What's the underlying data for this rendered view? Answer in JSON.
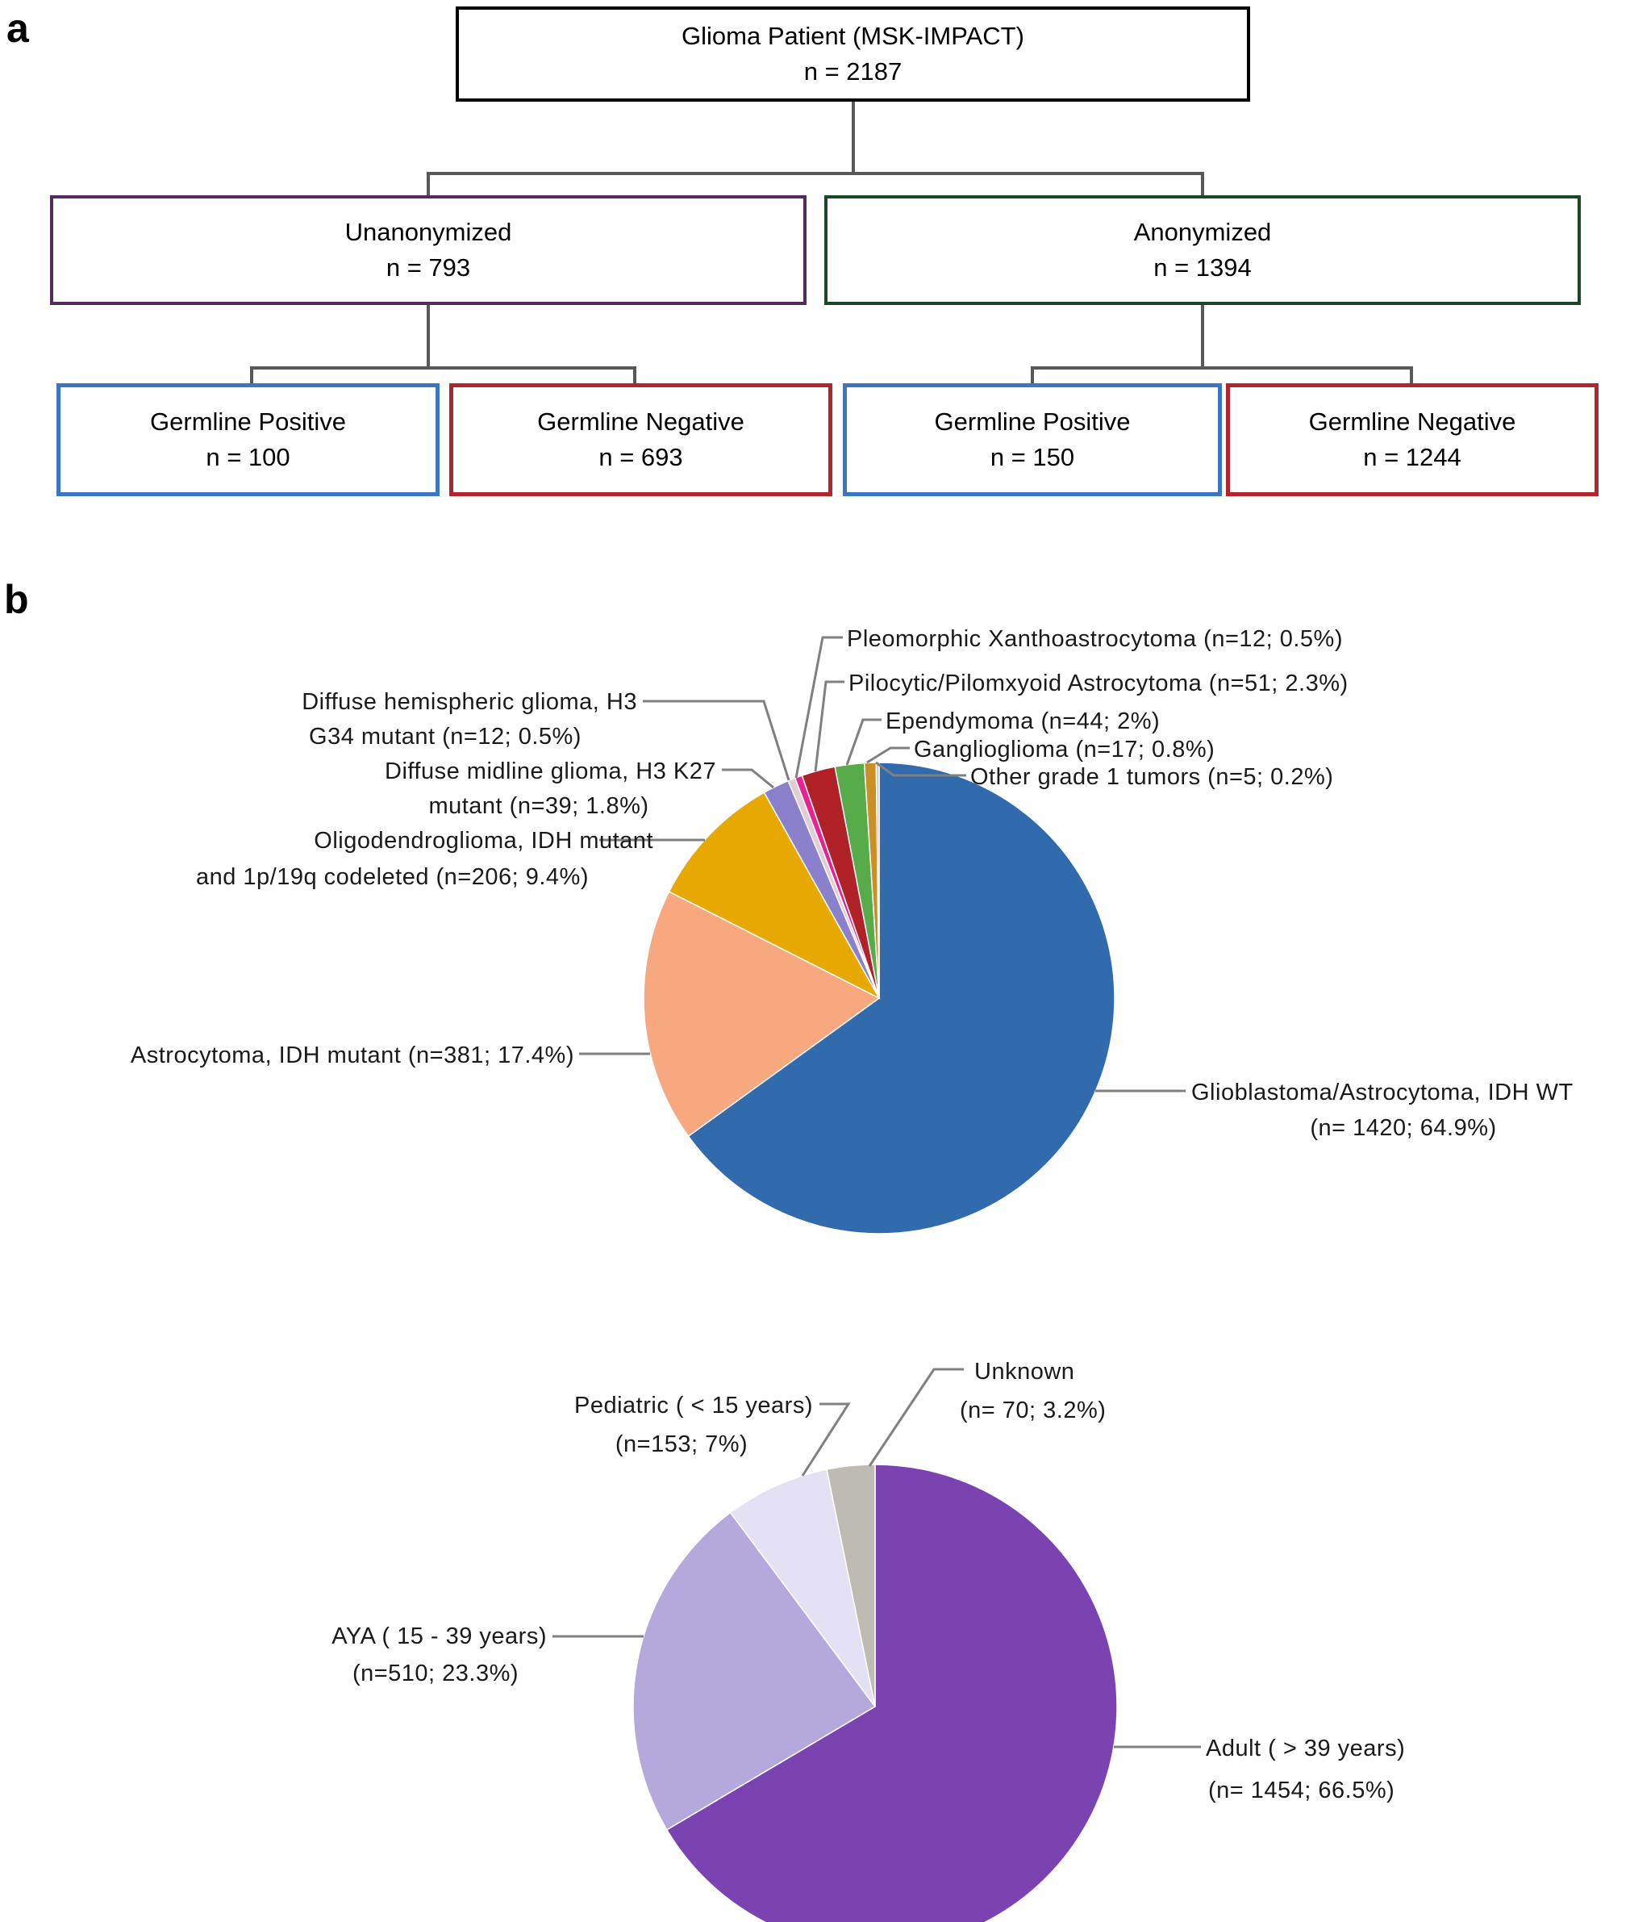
{
  "panel_a": {
    "label": "a",
    "flowchart": {
      "root": {
        "lines": [
          "Glioma Patient (MSK-IMPACT)",
          "n = 2187"
        ]
      },
      "unanonymized": {
        "lines": [
          "Unanonymized",
          "n = 793"
        ]
      },
      "anonymized": {
        "lines": [
          "Anonymized",
          "n = 1394"
        ]
      },
      "unanon_positive": {
        "lines": [
          "Germline Positive",
          "n = 100"
        ]
      },
      "unanon_negative": {
        "lines": [
          "Germline Negative",
          "n = 693"
        ]
      },
      "anon_positive": {
        "lines": [
          "Germline Positive",
          "n = 150"
        ]
      },
      "anon_negative": {
        "lines": [
          "Germline Negative",
          "n = 1244"
        ]
      }
    }
  },
  "panel_b": {
    "label": "b"
  },
  "colors": {
    "box-border-default": "#000000",
    "box-border-unanonymized": "#532B5B",
    "box-border-anonymized": "#1C4724",
    "box-border-positive": "#3B76C1",
    "box-border-negative": "#B4242C",
    "connector-gray": "#58585A",
    "leader-gray": "#808080"
  },
  "chart_data": [
    {
      "type": "pie",
      "name": "glioma-subtype-distribution",
      "total_n": 2187,
      "start_angle_deg": 0,
      "direction": "clockwise-from-top",
      "slices": [
        {
          "id": "glioblastoma-idh-wt",
          "n": 1420,
          "pct": 64.9,
          "color": "#316AAD",
          "label_lines": [
            "Glioblastoma/Astrocytoma, IDH WT",
            "(n= 1420; 64.9%)"
          ]
        },
        {
          "id": "astrocytoma-idh-mutant",
          "n": 381,
          "pct": 17.4,
          "color": "#F8A87E",
          "label_lines": [
            "Astrocytoma, IDH mutant (n=381; 17.4%)"
          ]
        },
        {
          "id": "oligodendroglioma-idh-mutant",
          "n": 206,
          "pct": 9.4,
          "color": "#E7A800",
          "label_lines": [
            "Oligodendroglioma, IDH mutant",
            "and 1p/19q codeleted (n=206; 9.4%)"
          ]
        },
        {
          "id": "diffuse-midline-glioma-h3-k27",
          "n": 39,
          "pct": 1.8,
          "color": "#8A80CC",
          "label_lines": [
            "Diffuse midline glioma, H3 K27",
            "mutant (n=39; 1.8%)"
          ]
        },
        {
          "id": "diffuse-hemispheric-glioma-h3-g34",
          "n": 12,
          "pct": 0.5,
          "color": "#E0CDD6",
          "label_lines": [
            "Diffuse hemispheric glioma, H3",
            "G34 mutant (n=12; 0.5%)"
          ]
        },
        {
          "id": "pleomorphic-xanthoastrocytoma",
          "n": 12,
          "pct": 0.5,
          "color": "#E6238F",
          "label_lines": [
            "Pleomorphic Xanthoastrocytoma (n=12; 0.5%)"
          ]
        },
        {
          "id": "pilocytic-pilomxyoid-astrocytoma",
          "n": 51,
          "pct": 2.3,
          "color": "#B12228",
          "label_lines": [
            "Pilocytic/Pilomxyoid Astrocytoma (n=51; 2.3%)"
          ]
        },
        {
          "id": "ependymoma",
          "n": 44,
          "pct": 2,
          "color": "#57AC49",
          "label_lines": [
            "Ependymoma (n=44; 2%)"
          ]
        },
        {
          "id": "ganglioglioma",
          "n": 17,
          "pct": 0.8,
          "color": "#CC8F26",
          "label_lines": [
            "Ganglioglioma (n=17; 0.8%)"
          ]
        },
        {
          "id": "other-grade-1-tumors",
          "n": 5,
          "pct": 0.2,
          "color": "#C9C9CE",
          "label_lines": [
            "Other grade 1 tumors (n=5; 0.2%)"
          ]
        }
      ]
    },
    {
      "type": "pie",
      "name": "age-group-distribution",
      "total_n": 2187,
      "start_angle_deg": 0,
      "direction": "clockwise-from-top",
      "slices": [
        {
          "id": "adult",
          "n": 1454,
          "pct": 66.5,
          "color": "#7B43B2",
          "label_lines": [
            "Adult ( > 39 years)",
            "(n= 1454; 66.5%)"
          ]
        },
        {
          "id": "aya",
          "n": 510,
          "pct": 23.3,
          "color": "#B5A8DC",
          "label_lines": [
            "AYA ( 15 - 39 years)",
            "(n=510; 23.3%)"
          ]
        },
        {
          "id": "pediatric",
          "n": 153,
          "pct": 7,
          "color": "#E4E1F4",
          "label_lines": [
            "Pediatric ( < 15 years)",
            "(n=153; 7%)"
          ]
        },
        {
          "id": "unknown",
          "n": 70,
          "pct": 3.2,
          "color": "#BDBBB2",
          "label_lines": [
            "Unknown",
            "(n= 70; 3.2%)"
          ]
        }
      ]
    }
  ]
}
